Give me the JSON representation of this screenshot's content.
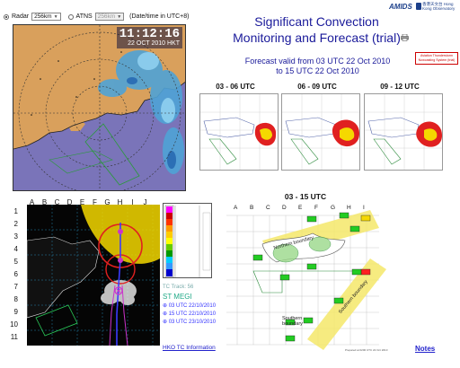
{
  "radar_controls": {
    "radar_label": "Radar",
    "radar_value": "256km",
    "atns_label": "ATNS",
    "atns_value": "256km",
    "note": "(Date/time in UTC+8)"
  },
  "radar_image": {
    "time": "11:12:16",
    "date": "22 OCT 2010  HKT"
  },
  "header": {
    "amids_logo": "AMIDS",
    "hko_logo": "香港天文台 Hong Kong Observatory",
    "title_line1": "Significant Convection",
    "title_line2": "Monitoring and Forecast (trial)",
    "system_link": "Aviation Thunderstorm Nowcasting System (trial)",
    "valid_line1": "Forecast valid from 03 UTC 22 Oct 2010",
    "valid_line2": "to 15 UTC 22 Oct 2010"
  },
  "forecast_thumbs": [
    {
      "label": "03 - 06 UTC"
    },
    {
      "label": "06 - 09 UTC"
    },
    {
      "label": "09 - 12 UTC"
    }
  ],
  "track": {
    "col_labels": [
      "A",
      "B",
      "C",
      "D",
      "E",
      "F",
      "G",
      "H",
      "I",
      "J"
    ],
    "row_labels": [
      "1",
      "2",
      "3",
      "4",
      "5",
      "6",
      "7",
      "8",
      "9",
      "10",
      "11"
    ],
    "tc_track_label": "TC Track: 56",
    "st_name": "ST MEGI",
    "positions": [
      "03 UTC 22/10/2010",
      "15 UTC 22/10/2010",
      "03 UTC 23/10/2010"
    ],
    "hko_link": "HKO TC Information"
  },
  "big_forecast": {
    "label": "03 - 15 UTC",
    "northern_boundary": "Northern boundary",
    "southern_boundary": "Southern boundary",
    "prepared": "Prepared at 0200 UTC 22 Oct 2010"
  },
  "notes_link": "Notes",
  "colors": {
    "title": "#1a1a9a",
    "link": "#2222cc",
    "land": "#d9a05c",
    "sea": "#7a74b9",
    "thunder_red": "#e02020",
    "thunder_yellow": "#f5d800"
  }
}
